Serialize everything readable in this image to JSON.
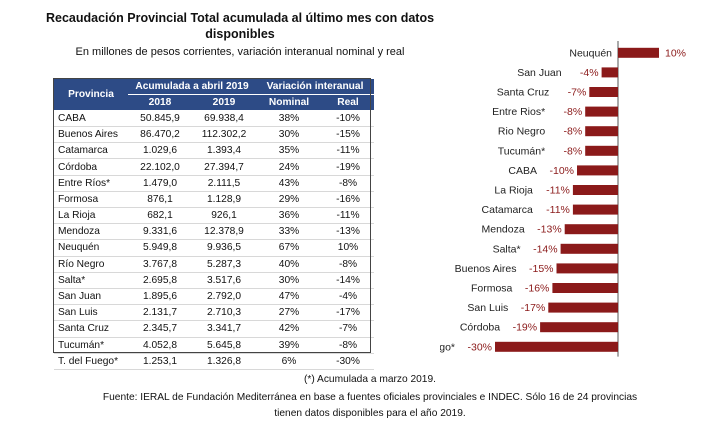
{
  "title": "Recaudación Provincial Total acumulada al último mes con datos disponibles",
  "subtitle": "En millones de pesos corrientes, variación interanual nominal y real",
  "table": {
    "header_provincia": "Provincia",
    "header_acumulada": "Acumulada a abril 2019",
    "header_variacion": "Variación interanual",
    "sub_2018": "2018",
    "sub_2019": "2019",
    "sub_nominal": "Nominal",
    "sub_real": "Real",
    "rows": [
      [
        "CABA",
        "50.845,9",
        "69.938,4",
        "38%",
        "-10%"
      ],
      [
        "Buenos Aires",
        "86.470,2",
        "112.302,2",
        "30%",
        "-15%"
      ],
      [
        "Catamarca",
        "1.029,6",
        "1.393,4",
        "35%",
        "-11%"
      ],
      [
        "Córdoba",
        "22.102,0",
        "27.394,7",
        "24%",
        "-19%"
      ],
      [
        "Entre Ríos*",
        "1.479,0",
        "2.111,5",
        "43%",
        "-8%"
      ],
      [
        "Formosa",
        "876,1",
        "1.128,9",
        "29%",
        "-16%"
      ],
      [
        "La Rioja",
        "682,1",
        "926,1",
        "36%",
        "-11%"
      ],
      [
        "Mendoza",
        "9.331,6",
        "12.378,9",
        "33%",
        "-13%"
      ],
      [
        "Neuquén",
        "5.949,8",
        "9.936,5",
        "67%",
        "10%"
      ],
      [
        "Río Negro",
        "3.767,8",
        "5.287,3",
        "40%",
        "-8%"
      ],
      [
        "Salta*",
        "2.695,8",
        "3.517,6",
        "30%",
        "-14%"
      ],
      [
        "San Juan",
        "1.895,6",
        "2.792,0",
        "47%",
        "-4%"
      ],
      [
        "San Luis",
        "2.131,7",
        "2.710,3",
        "27%",
        "-17%"
      ],
      [
        "Santa Cruz",
        "2.345,7",
        "3.341,7",
        "42%",
        "-7%"
      ],
      [
        "Tucumán*",
        "4.052,8",
        "5.645,8",
        "39%",
        "-8%"
      ],
      [
        "T. del Fuego*",
        "1.253,1",
        "1.326,8",
        "6%",
        "-30%"
      ]
    ]
  },
  "chart_data": {
    "type": "bar",
    "orientation": "horizontal",
    "categories": [
      "Neuquén",
      "San Juan",
      "Santa Cruz",
      "Entre Rios*",
      "Rio Negro",
      "Tucumán*",
      "CABA",
      "La Rioja",
      "Catamarca",
      "Mendoza",
      "Salta*",
      "Buenos Aires",
      "Formosa",
      "San Luis",
      "Córdoba",
      "T. del Fuego*"
    ],
    "values": [
      10,
      -4,
      -7,
      -8,
      -8,
      -8,
      -10,
      -11,
      -11,
      -13,
      -14,
      -15,
      -16,
      -17,
      -19,
      -30
    ],
    "value_labels": [
      "10%",
      "-4%",
      "-7%",
      "-8%",
      "-8%",
      "-8%",
      "-10%",
      "-11%",
      "-11%",
      "-13%",
      "-14%",
      "-15%",
      "-16%",
      "-17%",
      "-19%",
      "-30%"
    ],
    "bar_color": "#8b1a1a",
    "label_color": "#8b1a1a",
    "axis": "vertical zero line"
  },
  "notes": {
    "line1": "(*) Acumulada a marzo 2019.",
    "line2": "Fuente: IERAL de Fundación Mediterránea en base a fuentes oficiales provinciales e INDEC. Sólo 16 de 24 provincias",
    "line3": "tienen datos disponibles para el año 2019."
  }
}
